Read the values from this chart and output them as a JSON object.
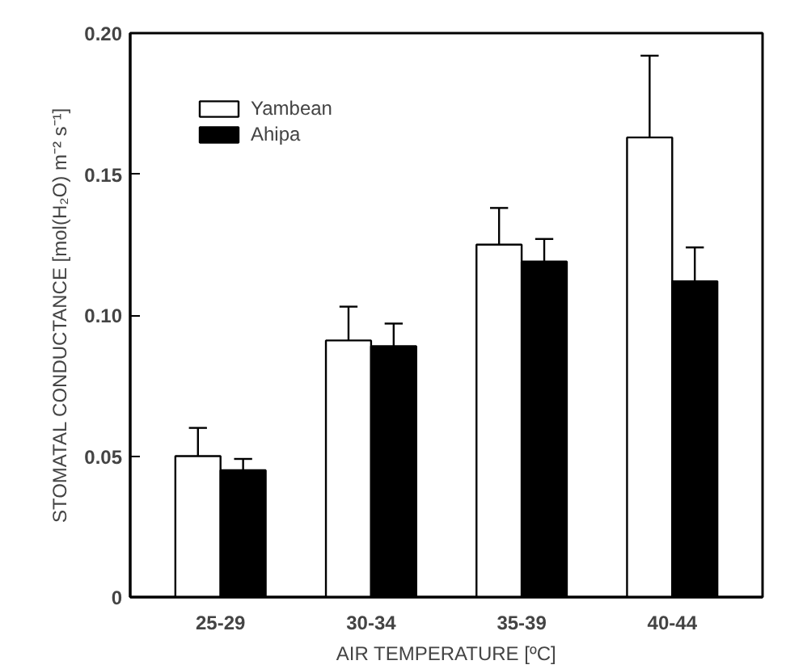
{
  "chart_data": {
    "type": "bar",
    "xlabel": "AIR TEMPERATURE [ºC]",
    "ylabel": "STOMATAL CONDUCTANCE [mol(H₂O) m⁻² s⁻¹]",
    "categories": [
      "25-29",
      "30-34",
      "35-39",
      "40-44"
    ],
    "series": [
      {
        "name": "Yambean",
        "color": "#ffffff",
        "values": [
          0.05,
          0.091,
          0.125,
          0.163
        ],
        "errors": [
          [
            0.05,
            0.06
          ],
          [
            0.091,
            0.103
          ],
          [
            0.125,
            0.138
          ],
          [
            0.163,
            0.192
          ]
        ]
      },
      {
        "name": "Ahipa",
        "color": "#000000",
        "values": [
          0.045,
          0.089,
          0.119,
          0.112
        ],
        "errors": [
          [
            0.045,
            0.049
          ],
          [
            0.089,
            0.097
          ],
          [
            0.119,
            0.127
          ],
          [
            0.112,
            0.124
          ]
        ]
      }
    ],
    "ylim": [
      0,
      0.2
    ],
    "yticks": [
      0,
      {
        "value": 0.05,
        "label": "0.05"
      },
      {
        "value": 0.1,
        "label": "0.10"
      },
      {
        "value": 0.15,
        "label": "0.15"
      },
      {
        "value": 0.2,
        "label": "0.20"
      }
    ],
    "grid": false,
    "legend": "top left"
  }
}
